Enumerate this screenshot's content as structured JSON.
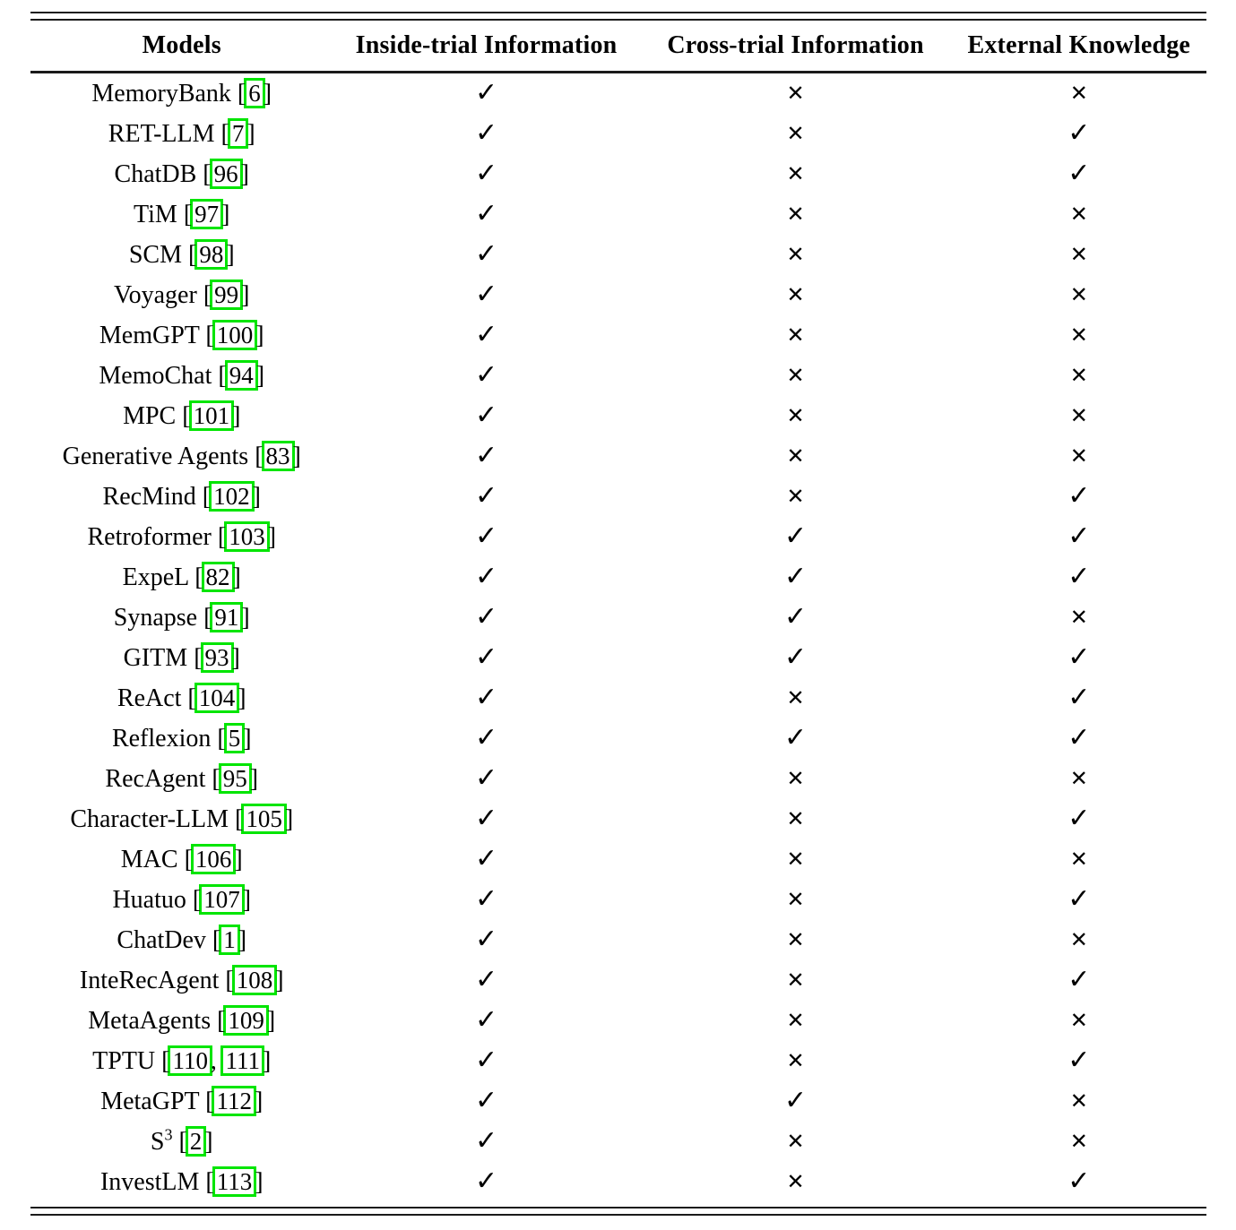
{
  "table": {
    "columns": [
      "Models",
      "Inside-trial Information",
      "Cross-trial Information",
      "External Knowledge"
    ],
    "symbols": {
      "check": "✓",
      "cross": "✕"
    },
    "citation_open": "[",
    "citation_close": "]",
    "citation_separator": ", ",
    "citation_box_color": "#00e500",
    "rows": [
      {
        "model": "MemoryBank",
        "citations": [
          "6"
        ],
        "inside": "check",
        "cross": "cross",
        "external": "cross"
      },
      {
        "model": "RET-LLM",
        "citations": [
          "7"
        ],
        "inside": "check",
        "cross": "cross",
        "external": "check"
      },
      {
        "model": "ChatDB",
        "citations": [
          "96"
        ],
        "inside": "check",
        "cross": "cross",
        "external": "check"
      },
      {
        "model": "TiM",
        "citations": [
          "97"
        ],
        "inside": "check",
        "cross": "cross",
        "external": "cross"
      },
      {
        "model": "SCM",
        "citations": [
          "98"
        ],
        "inside": "check",
        "cross": "cross",
        "external": "cross"
      },
      {
        "model": "Voyager",
        "citations": [
          "99"
        ],
        "inside": "check",
        "cross": "cross",
        "external": "cross"
      },
      {
        "model": "MemGPT",
        "citations": [
          "100"
        ],
        "inside": "check",
        "cross": "cross",
        "external": "cross"
      },
      {
        "model": "MemoChat",
        "citations": [
          "94"
        ],
        "inside": "check",
        "cross": "cross",
        "external": "cross"
      },
      {
        "model": "MPC",
        "citations": [
          "101"
        ],
        "inside": "check",
        "cross": "cross",
        "external": "cross"
      },
      {
        "model": "Generative Agents",
        "citations": [
          "83"
        ],
        "inside": "check",
        "cross": "cross",
        "external": "cross"
      },
      {
        "model": "RecMind",
        "citations": [
          "102"
        ],
        "inside": "check",
        "cross": "cross",
        "external": "check"
      },
      {
        "model": "Retroformer",
        "citations": [
          "103"
        ],
        "inside": "check",
        "cross": "check",
        "external": "check"
      },
      {
        "model": "ExpeL",
        "citations": [
          "82"
        ],
        "inside": "check",
        "cross": "check",
        "external": "check"
      },
      {
        "model": "Synapse",
        "citations": [
          "91"
        ],
        "inside": "check",
        "cross": "check",
        "external": "cross"
      },
      {
        "model": "GITM",
        "citations": [
          "93"
        ],
        "inside": "check",
        "cross": "check",
        "external": "check"
      },
      {
        "model": "ReAct",
        "citations": [
          "104"
        ],
        "inside": "check",
        "cross": "cross",
        "external": "check"
      },
      {
        "model": "Reflexion",
        "citations": [
          "5"
        ],
        "inside": "check",
        "cross": "check",
        "external": "check"
      },
      {
        "model": "RecAgent",
        "citations": [
          "95"
        ],
        "inside": "check",
        "cross": "cross",
        "external": "cross"
      },
      {
        "model": "Character-LLM",
        "citations": [
          "105"
        ],
        "inside": "check",
        "cross": "cross",
        "external": "check"
      },
      {
        "model": "MAC",
        "citations": [
          "106"
        ],
        "inside": "check",
        "cross": "cross",
        "external": "cross"
      },
      {
        "model": "Huatuo",
        "citations": [
          "107"
        ],
        "inside": "check",
        "cross": "cross",
        "external": "check"
      },
      {
        "model": "ChatDev",
        "citations": [
          "1"
        ],
        "inside": "check",
        "cross": "cross",
        "external": "cross"
      },
      {
        "model": "InteRecAgent",
        "citations": [
          "108"
        ],
        "inside": "check",
        "cross": "cross",
        "external": "check"
      },
      {
        "model": "MetaAgents",
        "citations": [
          "109"
        ],
        "inside": "check",
        "cross": "cross",
        "external": "cross"
      },
      {
        "model": "TPTU",
        "citations": [
          "110",
          "111"
        ],
        "inside": "check",
        "cross": "cross",
        "external": "check"
      },
      {
        "model": "MetaGPT",
        "citations": [
          "112"
        ],
        "inside": "check",
        "cross": "check",
        "external": "cross"
      },
      {
        "model": "S",
        "model_sup": "3",
        "citations": [
          "2"
        ],
        "inside": "check",
        "cross": "cross",
        "external": "cross"
      },
      {
        "model": "InvestLM",
        "citations": [
          "113"
        ],
        "inside": "check",
        "cross": "cross",
        "external": "check"
      }
    ]
  }
}
